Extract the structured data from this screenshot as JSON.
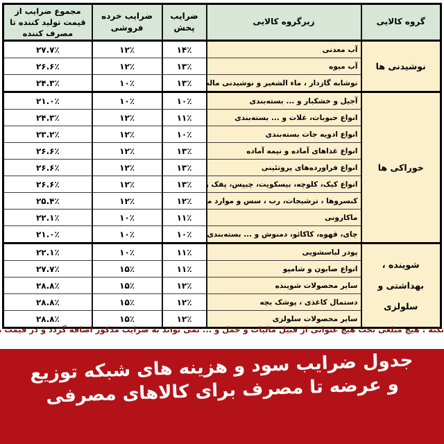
{
  "chart_data": {
    "type": "table",
    "title": "جدول ضرایب سود و هزینه های شبکه توزیع و عرضه تا مصرف برای کالاهای مصرفی",
    "columns": [
      "گروه کالایی",
      "زیرگروه کالایی",
      "ضرایب پخش",
      "ضرایب خرده فروشی",
      "مجموع ضرایب از قیمت تولید کننده تا مصرف کننده"
    ],
    "groups": [
      {
        "name": "نوشیدنی ها",
        "rows": [
          {
            "subgroup": "آب معدنی",
            "dist": "۱۴٪",
            "retail": "۱۲٪",
            "total": "۲۷.۷٪",
            "dist_value": 14,
            "retail_value": 12,
            "total_value": 27.7
          },
          {
            "subgroup": "آب میوه",
            "dist": "۱۳٪",
            "retail": "۱۲٪",
            "total": "۲۶.۶٪",
            "dist_value": 13,
            "retail_value": 12,
            "total_value": 26.6
          },
          {
            "subgroup": "نوشابه گازدار ، ماء الشعیر و نوشیدنی مالت",
            "dist": "۱۳٪",
            "retail": "۱۰٪",
            "total": "۲۴.۳٪",
            "dist_value": 13,
            "retail_value": 10,
            "total_value": 24.3
          }
        ]
      },
      {
        "name": "خوراکی ها",
        "rows": [
          {
            "subgroup": "آجیل و خشکبار و ... بسته‌بندی",
            "dist": "۱۰٪",
            "retail": "۱۰٪",
            "total": "۲۱.۰٪",
            "dist_value": 10,
            "retail_value": 10,
            "total_value": 21.0
          },
          {
            "subgroup": "انواع حبوبات، غلات و ... بسته‌بندی",
            "dist": "۱۱٪",
            "retail": "۱۲٪",
            "total": "۲۴.۳٪",
            "dist_value": 11,
            "retail_value": 12,
            "total_value": 24.3
          },
          {
            "subgroup": "انواع ادویه جات بسته‌بندی",
            "dist": "۱۰٪",
            "retail": "۱۲٪",
            "total": "۲۳.۲٪",
            "dist_value": 10,
            "retail_value": 12,
            "total_value": 23.2
          },
          {
            "subgroup": "انواع غذاهای آماده و نیمه آماده",
            "dist": "۱۳٪",
            "retail": "۱۲٪",
            "total": "۲۶.۶٪",
            "dist_value": 13,
            "retail_value": 12,
            "total_value": 26.6
          },
          {
            "subgroup": "انواع فراورده‌های پروتئینی",
            "dist": "۱۳٪",
            "retail": "۱۲٪",
            "total": "۲۶.۶٪",
            "dist_value": 13,
            "retail_value": 12,
            "total_value": 26.6
          },
          {
            "subgroup": "انواع کیک، کلوچه، بیسکویت، چیپس، پفک و ...",
            "dist": "۱۳٪",
            "retail": "۱۲٪",
            "total": "۲۶.۶٪",
            "dist_value": 13,
            "retail_value": 12,
            "total_value": 26.6
          },
          {
            "subgroup": "کنسروها ، ترشیجات، رب ، سس و موارد مشابه",
            "dist": "۱۲٪",
            "retail": "۱۲٪",
            "total": "۲۵.۴٪",
            "dist_value": 12,
            "retail_value": 12,
            "total_value": 25.4
          },
          {
            "subgroup": "ماکارونی",
            "dist": "۱۱٪",
            "retail": "۱۰٪",
            "total": "۲۲.۱٪",
            "dist_value": 11,
            "retail_value": 10,
            "total_value": 22.1
          },
          {
            "subgroup": "چای، قهوه، کاکائو، دمنوش و ... بسته‌بندی",
            "dist": "۱۰٪",
            "retail": "۱۰٪",
            "total": "۲۱.۰٪",
            "dist_value": 10,
            "retail_value": 10,
            "total_value": 21.0
          }
        ]
      },
      {
        "name": "شوینده ، بهداشتی و سلولزی",
        "rows": [
          {
            "subgroup": "پودر لباسشویی",
            "dist": "۱۱٪",
            "retail": "۱۰٪",
            "total": "۲۲.۱٪",
            "dist_value": 11,
            "retail_value": 10,
            "total_value": 22.1
          },
          {
            "subgroup": "انواع صابون و شامپو",
            "dist": "۱۱٪",
            "retail": "۱۵٪",
            "total": "۲۷.۷٪",
            "dist_value": 11,
            "retail_value": 15,
            "total_value": 27.7
          },
          {
            "subgroup": "سایر محصولات شوینده",
            "dist": "۱۲٪",
            "retail": "۱۵٪",
            "total": "۲۸.۸٪",
            "dist_value": 12,
            "retail_value": 15,
            "total_value": 28.8
          },
          {
            "subgroup": "دستمال کاغذی ، پوشک بچه",
            "dist": "۱۲٪",
            "retail": "۱۵٪",
            "total": "۲۸.۸٪",
            "dist_value": 12,
            "retail_value": 15,
            "total_value": 28.8
          },
          {
            "subgroup": "سایر محصولات سلولزی",
            "dist": "۱۲٪",
            "retail": "۱۵٪",
            "total": "۲۸.۸٪",
            "dist_value": 12,
            "retail_value": 15,
            "total_value": 28.8
          }
        ]
      }
    ]
  },
  "note": "نکته : هیچ مبلغی تحت هیچ عنوانی از قبیل مالیات و حمل و ... نمی تواند به ضرایب مذکور اضافه گردد و در قیمت ها لحاظ شده هست.",
  "banner": {
    "line1": "جدول ضرایب سود و هزینه های شبکه توزیع",
    "line2": "و عرضه تا مصرف برای کالاهای مصرفی"
  },
  "colors": {
    "header_bg": "#d8e6d8",
    "group_bg": "#fbefcc",
    "row_bg": "#ffffff",
    "banner_bg": "#b31318",
    "banner_text": "#ffffff",
    "note_text": "#7b150d",
    "border": "#000000"
  }
}
